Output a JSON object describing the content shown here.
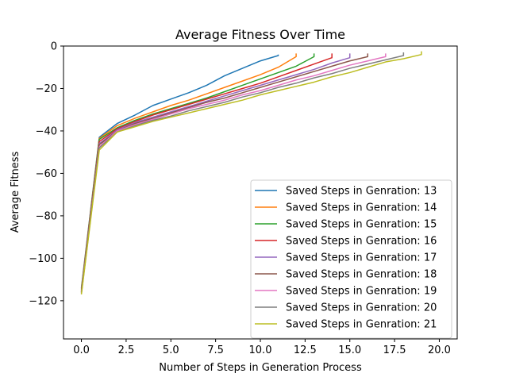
{
  "chart_data": {
    "type": "line",
    "title": "Average Fitness Over Time",
    "xlabel": "Number of Steps in Generation Process",
    "ylabel": "Average Fitness",
    "xlim": [
      -1,
      21
    ],
    "ylim": [
      -138,
      0
    ],
    "xticks": [
      0,
      2.5,
      5,
      7.5,
      10,
      12.5,
      15,
      17.5,
      20
    ],
    "xtick_labels": [
      "0.0",
      "2.5",
      "5.0",
      "7.5",
      "10.0",
      "12.5",
      "15.0",
      "17.5",
      "20.0"
    ],
    "yticks": [
      0,
      -20,
      -40,
      -60,
      -80,
      -100,
      -120
    ],
    "ytick_labels": [
      "0",
      "−20",
      "−40",
      "−60",
      "−80",
      "−100",
      "−120"
    ],
    "grid": false,
    "legend_position": "lower-right",
    "series": [
      {
        "name": "Saved Steps in Genration: 13",
        "color": "#1f77b4",
        "x": [
          0,
          1,
          2,
          3,
          4,
          5,
          6,
          7,
          8,
          9,
          10,
          11,
          11
        ],
        "y": [
          -114,
          -43,
          -36.5,
          -32.5,
          -28,
          -25,
          -22,
          -18.5,
          -14,
          -10.5,
          -7,
          -4.5,
          -4
        ]
      },
      {
        "name": "Saved Steps in Genration: 14",
        "color": "#ff7f0e",
        "x": [
          0,
          1,
          2,
          3,
          4,
          5,
          6,
          7,
          8,
          9,
          10,
          11,
          12,
          12
        ],
        "y": [
          -114.5,
          -43.5,
          -37.5,
          -34,
          -31,
          -28,
          -25.5,
          -22.5,
          -19.5,
          -16.5,
          -13.5,
          -10,
          -5,
          -3.5
        ]
      },
      {
        "name": "Saved Steps in Genration: 15",
        "color": "#2ca02c",
        "x": [
          0,
          1,
          2,
          3,
          4,
          5,
          6,
          7,
          8,
          9,
          10,
          11,
          12,
          13,
          13
        ],
        "y": [
          -115,
          -44,
          -38.5,
          -35,
          -32,
          -29.5,
          -27,
          -24.5,
          -21.5,
          -18.5,
          -15.5,
          -12.5,
          -9.5,
          -5,
          -3.5
        ]
      },
      {
        "name": "Saved Steps in Genration: 16",
        "color": "#d62728",
        "x": [
          0,
          1,
          2,
          3,
          4,
          5,
          6,
          7,
          8,
          9,
          10,
          11,
          12,
          13,
          14,
          14
        ],
        "y": [
          -115.5,
          -45,
          -39,
          -35.5,
          -32.5,
          -30,
          -27.5,
          -25,
          -22.5,
          -20,
          -17.5,
          -14.5,
          -11.5,
          -8.5,
          -5.5,
          -3.5
        ]
      },
      {
        "name": "Saved Steps in Genration: 17",
        "color": "#9467bd",
        "x": [
          0,
          1,
          2,
          3,
          4,
          5,
          6,
          7,
          8,
          9,
          10,
          11,
          12,
          13,
          14,
          15,
          15
        ],
        "y": [
          -116,
          -46,
          -39.5,
          -36,
          -33.5,
          -31,
          -28.5,
          -26,
          -23.5,
          -21,
          -18.5,
          -16,
          -13.5,
          -11,
          -8,
          -5.5,
          -3.5
        ]
      },
      {
        "name": "Saved Steps in Genration: 18",
        "color": "#8c564b",
        "x": [
          0,
          1,
          2,
          3,
          4,
          5,
          6,
          7,
          8,
          9,
          10,
          11,
          12,
          13,
          14,
          15,
          16,
          16
        ],
        "y": [
          -116,
          -46.5,
          -40,
          -36.5,
          -34,
          -31.5,
          -29,
          -26.5,
          -24.5,
          -22,
          -19.5,
          -17,
          -14.5,
          -12,
          -9.5,
          -7,
          -5,
          -3.5
        ]
      },
      {
        "name": "Saved Steps in Genration: 19",
        "color": "#e377c2",
        "x": [
          0,
          1,
          2,
          3,
          4,
          5,
          6,
          7,
          8,
          9,
          10,
          11,
          12,
          13,
          14,
          15,
          16,
          17,
          17
        ],
        "y": [
          -116.5,
          -47.5,
          -40,
          -37,
          -34.5,
          -32,
          -29.5,
          -27.5,
          -25.5,
          -23,
          -21,
          -18.5,
          -16,
          -14,
          -11.5,
          -9,
          -7,
          -5,
          -3.5
        ]
      },
      {
        "name": "Saved Steps in Genration: 20",
        "color": "#7f7f7f",
        "x": [
          0,
          1,
          2,
          3,
          4,
          5,
          6,
          7,
          8,
          9,
          10,
          11,
          12,
          13,
          14,
          15,
          16,
          17,
          18,
          18
        ],
        "y": [
          -116.5,
          -48,
          -40.5,
          -37.5,
          -35,
          -33,
          -30.5,
          -28.5,
          -26.5,
          -24,
          -22,
          -19.5,
          -17.5,
          -15,
          -13,
          -10.5,
          -8.5,
          -6.5,
          -4.5,
          -3
        ]
      },
      {
        "name": "Saved Steps in Genration: 21",
        "color": "#bcbd22",
        "x": [
          0,
          1,
          2,
          3,
          4,
          5,
          6,
          7,
          8,
          9,
          10,
          11,
          12,
          13,
          14,
          15,
          16,
          17,
          18,
          19,
          19
        ],
        "y": [
          -117,
          -49,
          -40.5,
          -38,
          -35.5,
          -33.5,
          -31.5,
          -29.5,
          -27.5,
          -25.5,
          -23,
          -21,
          -19,
          -17,
          -14.5,
          -12.5,
          -10,
          -7.5,
          -6,
          -4,
          -2.5
        ]
      }
    ]
  }
}
